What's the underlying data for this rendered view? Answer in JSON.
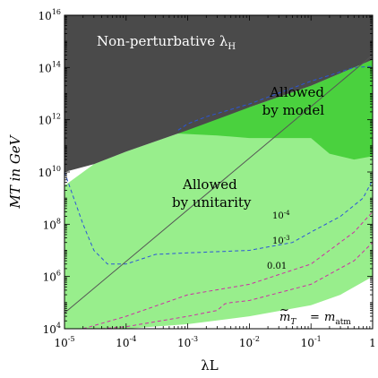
{
  "chart_data": {
    "type": "area",
    "title": "",
    "xlabel": "λL",
    "ylabel": "MT in GeV",
    "xscale": "log",
    "yscale": "log",
    "xlim": [
      1e-05,
      1
    ],
    "ylim": [
      10000,
      10000000000000000
    ],
    "x_ticks": [
      {
        "base": "10",
        "exp": "-5",
        "value": 1e-05
      },
      {
        "base": "10",
        "exp": "-4",
        "value": 0.0001
      },
      {
        "base": "10",
        "exp": "-3",
        "value": 0.001
      },
      {
        "base": "10",
        "exp": "-2",
        "value": 0.01
      },
      {
        "base": "10",
        "exp": "-1",
        "value": 0.1
      },
      {
        "base": "1",
        "exp": "",
        "value": 1
      }
    ],
    "y_ticks": [
      {
        "base": "10",
        "exp": "4",
        "value": 10000
      },
      {
        "base": "10",
        "exp": "6",
        "value": 1000000
      },
      {
        "base": "10",
        "exp": "8",
        "value": 100000000
      },
      {
        "base": "10",
        "exp": "10",
        "value": 10000000000
      },
      {
        "base": "10",
        "exp": "12",
        "value": 1000000000000
      },
      {
        "base": "10",
        "exp": "14",
        "value": 100000000000000
      },
      {
        "base": "10",
        "exp": "16",
        "value": 10000000000000000
      }
    ],
    "regions": [
      {
        "id": "non-perturbative",
        "label": "Non-perturbative λH",
        "color": "#4a4a4a",
        "boundary": [
          [
            1e-05,
            10000000000
          ],
          [
            3e-05,
            20000000000
          ],
          [
            0.0001,
            60000000000
          ],
          [
            0.001,
            400000000000
          ],
          [
            0.01,
            3000000000000
          ],
          [
            0.1,
            20000000000000
          ],
          [
            1,
            200000000000000
          ],
          [
            1,
            10000000000000000
          ],
          [
            1e-05,
            10000000000000000
          ]
        ]
      },
      {
        "id": "allowed-by-unitarity",
        "label": "Allowed by unitarity",
        "color": "#98ee8c",
        "boundary": [
          [
            1e-05,
            10000
          ],
          [
            1e-05,
            3000000000
          ],
          [
            3e-05,
            20000000000
          ],
          [
            0.0001,
            60000000000
          ],
          [
            0.001,
            400000000000
          ],
          [
            0.01,
            3000000000000
          ],
          [
            0.1,
            20000000000000
          ],
          [
            1,
            200000000000000
          ],
          [
            1,
            1000000
          ],
          [
            0.3,
            200000
          ],
          [
            0.1,
            80000
          ],
          [
            0.01,
            30000
          ],
          [
            0.001,
            15000
          ],
          [
            0.0001,
            10000
          ]
        ]
      },
      {
        "id": "allowed-by-model",
        "label": "Allowed by model",
        "color": "#4ad13e",
        "boundary": [
          [
            0.0006,
            600000000000
          ],
          [
            0.001,
            700000000000
          ],
          [
            0.005,
            2000000000000
          ],
          [
            0.01,
            3000000000000
          ],
          [
            0.1,
            20000000000000
          ],
          [
            1,
            200000000000000
          ],
          [
            1,
            40000000000
          ],
          [
            0.5,
            30000000000
          ],
          [
            0.2,
            50000000000
          ],
          [
            0.1,
            200000000000
          ],
          [
            0.01,
            200000000000
          ],
          [
            0.003,
            250000000000
          ],
          [
            0.0006,
            300000000000
          ]
        ]
      }
    ],
    "unitarity_line": {
      "color": "#555555",
      "points": [
        [
          1e-05,
          40000
        ],
        [
          1,
          300000000000000
        ]
      ]
    },
    "contours": [
      {
        "label": "10-4",
        "label_base": "10",
        "label_exp": "-4",
        "color": "#2b55d8",
        "points": [
          [
            1e-05,
            10000000000
          ],
          [
            2e-05,
            100000000
          ],
          [
            3e-05,
            10000000
          ],
          [
            5e-05,
            3000000
          ],
          [
            0.0001,
            3000000
          ],
          [
            0.0003,
            7000000
          ],
          [
            0.001,
            8000000
          ],
          [
            0.01,
            10000000
          ],
          [
            0.05,
            20000000
          ],
          [
            0.1,
            50000000
          ],
          [
            0.3,
            200000000
          ],
          [
            0.7,
            1000000000
          ],
          [
            1,
            5000000000
          ]
        ]
      },
      {
        "label": "10-4",
        "label_base": "10",
        "label_exp": "-4",
        "color": "#2b55d8",
        "points": [
          [
            0.0007,
            400000000000
          ],
          [
            0.001,
            700000000000
          ],
          [
            0.002,
            1300000000000
          ],
          [
            0.01,
            4000000000000
          ],
          [
            0.1,
            30000000000000
          ],
          [
            0.2,
            50000000000000
          ],
          [
            0.5,
            100000000000000
          ],
          [
            1,
            110000000000000
          ]
        ]
      },
      {
        "label": "10-3",
        "label_base": "10",
        "label_exp": "-3",
        "color": "#cc2fa3",
        "points": [
          [
            2e-05,
            10000
          ],
          [
            0.0001,
            30000
          ],
          [
            0.001,
            200000
          ],
          [
            0.01,
            500000
          ],
          [
            0.1,
            3000000
          ],
          [
            0.5,
            50000000
          ],
          [
            1,
            300000000
          ]
        ]
      },
      {
        "label": "0.01",
        "label_base": "0.01",
        "label_exp": "",
        "color": "#cc2fa3",
        "points": [
          [
            4e-05,
            10000
          ],
          [
            0.0001,
            12000
          ],
          [
            0.001,
            30000
          ],
          [
            0.003,
            50000
          ],
          [
            0.004,
            90000
          ],
          [
            0.005,
            100000
          ],
          [
            0.01,
            120000
          ],
          [
            0.1,
            500000
          ],
          [
            0.5,
            4000000
          ],
          [
            1,
            20000000
          ]
        ]
      }
    ],
    "annotations": {
      "mt_label": "m",
      "mt_sub": "T",
      "equals": "=",
      "matm": "m",
      "matm_sub": "atm",
      "unitarity_line1": "Allowed",
      "unitarity_line2": "by unitarity",
      "model_line1": "Allowed",
      "model_line2": "by model",
      "nonpert_main": "Non-perturbative λ",
      "nonpert_sub": "H"
    },
    "colors": {
      "nonperturbative": "#4a4a4a",
      "unitarity": "#98ee8c",
      "model": "#4ad13e",
      "contour_blue": "#2b55d8",
      "contour_magenta": "#cc2fa3",
      "white_text": "#ffffff"
    }
  }
}
